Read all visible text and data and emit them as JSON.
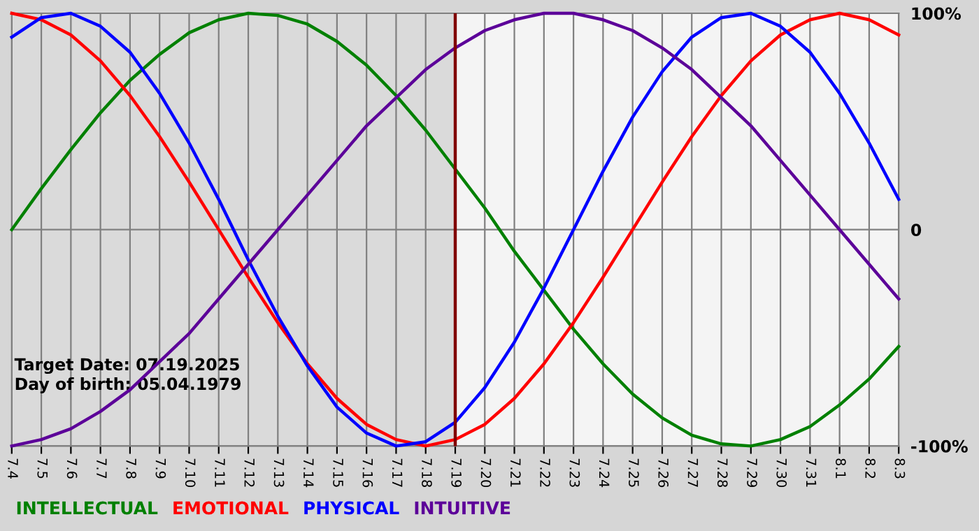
{
  "chart_data": {
    "type": "line",
    "categories": [
      "7.4",
      "7.5",
      "7.6",
      "7.7",
      "7.8",
      "7.9",
      "7.10",
      "7.11",
      "7.12",
      "7.13",
      "7.14",
      "7.15",
      "7.16",
      "7.17",
      "7.18",
      "7.19",
      "7.20",
      "7.21",
      "7.22",
      "7.23",
      "7.24",
      "7.25",
      "7.26",
      "7.27",
      "7.28",
      "7.29",
      "7.30",
      "7.31",
      "8.1",
      "8.2",
      "8.3"
    ],
    "series": [
      {
        "name": "INTELLECTUAL",
        "color": "#008000",
        "values": [
          0,
          19,
          37,
          54,
          69,
          81,
          91,
          97,
          100,
          99,
          95,
          87,
          76,
          62,
          46,
          28,
          10,
          -10,
          -28,
          -46,
          -62,
          -76,
          -87,
          -95,
          -99,
          -100,
          -97,
          -91,
          -81,
          -69,
          -54
        ]
      },
      {
        "name": "EMOTIONAL",
        "color": "#ff0000",
        "values": [
          100,
          97,
          90,
          78,
          62,
          43,
          22,
          0,
          -22,
          -43,
          -62,
          -78,
          -90,
          -97,
          -100,
          -97,
          -90,
          -78,
          -62,
          -43,
          -22,
          0,
          22,
          43,
          62,
          78,
          90,
          97,
          100,
          97,
          90
        ]
      },
      {
        "name": "PHYSICAL",
        "color": "#0000ff",
        "values": [
          89,
          98,
          100,
          94,
          82,
          63,
          40,
          14,
          -14,
          -40,
          -63,
          -82,
          -94,
          -100,
          -98,
          -89,
          -73,
          -52,
          -27,
          0,
          27,
          52,
          73,
          89,
          98,
          100,
          94,
          82,
          63,
          40,
          14
        ]
      },
      {
        "name": "INTUITIVE",
        "color": "#5c0099",
        "values": [
          -100,
          -97,
          -92,
          -84,
          -74,
          -61,
          -48,
          -32,
          -16,
          0,
          16,
          32,
          48,
          61,
          74,
          84,
          92,
          97,
          100,
          100,
          97,
          92,
          84,
          74,
          61,
          48,
          32,
          16,
          0,
          -16,
          -32
        ]
      }
    ],
    "ylim": [
      -100,
      100
    ],
    "yticks": [
      {
        "value": 100,
        "label": "100%"
      },
      0,
      {
        "value": -100,
        "label": "-100%"
      }
    ],
    "grid": true,
    "legend": "bottom left",
    "marker": "none",
    "line_style": "solid",
    "ref_lines": [
      {
        "axis": "x",
        "value": "7.19",
        "color": "#800000"
      }
    ],
    "bands": [
      {
        "axis": "x",
        "from": "7.4",
        "to": "7.19",
        "color": "#dadada"
      }
    ],
    "annotations": [
      "Target Date: 07.19.2025",
      "Day of birth: 05.04.1979"
    ]
  }
}
